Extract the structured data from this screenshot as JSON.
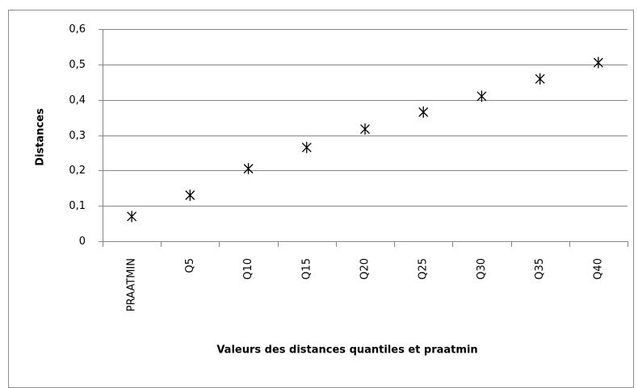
{
  "chart_data": {
    "type": "scatter",
    "x_label": "Valeurs des distances quantiles et praatmin",
    "y_label": "Distances",
    "categories": [
      "PRAATMIN",
      "Q5",
      "Q10",
      "Q15",
      "Q20",
      "Q25",
      "Q30",
      "Q35",
      "Q40"
    ],
    "values": [
      0.07,
      0.13,
      0.205,
      0.265,
      0.317,
      0.365,
      0.41,
      0.459,
      0.505
    ],
    "color": "#000000",
    "ylim": [
      0,
      0.6
    ],
    "yticks": [
      0,
      {
        "value": 0.1,
        "label": "0,1"
      },
      {
        "value": 0.2,
        "label": "0,2"
      },
      {
        "value": 0.3,
        "label": "0,3"
      },
      {
        "value": 0.4,
        "label": "0,4"
      },
      {
        "value": 0.5,
        "label": "0,5"
      },
      {
        "value": 0.6,
        "label": "0,6"
      }
    ],
    "grid": true
  }
}
